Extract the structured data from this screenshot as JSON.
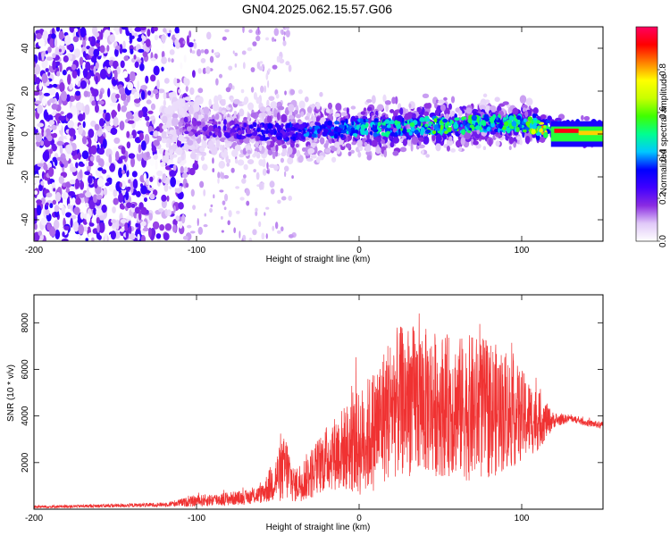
{
  "title": "GN04.2025.062.15.57.G06",
  "chart_data": [
    {
      "type": "heatmap",
      "panel": "top",
      "xlabel": "Height of straight line (km)",
      "ylabel": "Frequency (Hz)",
      "xlim": [
        -200,
        150
      ],
      "ylim": [
        -50,
        50
      ],
      "xticks": [
        -200,
        -100,
        0,
        100
      ],
      "yticks": [
        -40,
        -20,
        0,
        20,
        40
      ],
      "colorbar": {
        "label": "Normalized spectral amplitude",
        "range": [
          0.0,
          1.0
        ],
        "ticks": [
          "0.0",
          "0.2",
          "0.4",
          "0.6",
          "0.8"
        ],
        "colormap": [
          "#ffffff",
          "#e0c8f8",
          "#8a2be2",
          "#4000ff",
          "#0000ff",
          "#00c8ff",
          "#00ff90",
          "#40ff00",
          "#c8ff00",
          "#ffff00",
          "#ff8000",
          "#ff0000",
          "#ff0060"
        ]
      },
      "ridge": {
        "x": [
          -120,
          -100,
          -80,
          -60,
          -40,
          -20,
          0,
          20,
          40,
          60,
          80,
          100,
          120,
          150
        ],
        "center_freq": [
          5,
          3,
          2,
          1,
          1,
          2,
          3,
          3,
          4,
          4,
          5,
          5,
          2,
          0
        ],
        "amplitude": [
          0.15,
          0.2,
          0.25,
          0.3,
          0.35,
          0.4,
          0.45,
          0.5,
          0.55,
          0.55,
          0.5,
          0.55,
          0.9,
          0.8
        ]
      },
      "noise_region_x": [
        -200,
        -120
      ]
    },
    {
      "type": "line",
      "panel": "bottom",
      "xlabel": "Height of straight line (km)",
      "ylabel": "SNR (10 * v/v)",
      "xlim": [
        -200,
        150
      ],
      "ylim": [
        0,
        9200
      ],
      "xticks": [
        -200,
        -100,
        0,
        100
      ],
      "yticks": [
        2000,
        4000,
        6000,
        8000
      ],
      "color": "#f03232",
      "envelope": {
        "x": [
          -200,
          -150,
          -120,
          -100,
          -80,
          -70,
          -60,
          -45,
          -40,
          -30,
          -20,
          -10,
          0,
          10,
          20,
          30,
          40,
          50,
          60,
          70,
          80,
          90,
          100,
          110,
          120,
          130,
          140,
          150
        ],
        "mean": [
          100,
          150,
          200,
          350,
          450,
          500,
          650,
          1800,
          1000,
          1500,
          2200,
          2600,
          2800,
          3500,
          4500,
          4700,
          4600,
          4500,
          4400,
          4300,
          4300,
          4200,
          4000,
          3800,
          3800,
          3900,
          3700,
          3600
        ],
        "amp": [
          60,
          80,
          90,
          250,
          300,
          300,
          400,
          1500,
          700,
          1100,
          1400,
          1800,
          2300,
          2700,
          3200,
          3300,
          3200,
          3100,
          3000,
          3200,
          3000,
          2600,
          2000,
          1300,
          300,
          150,
          150,
          150
        ]
      }
    }
  ]
}
